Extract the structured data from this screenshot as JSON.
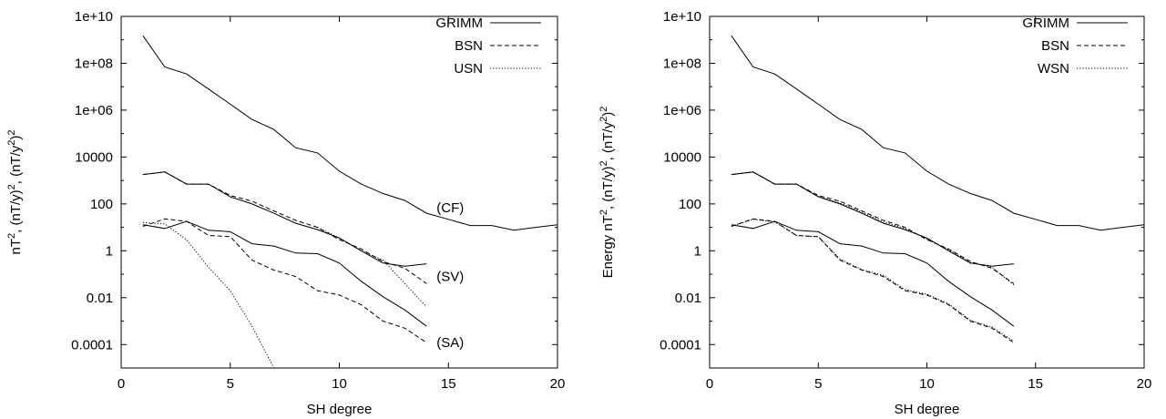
{
  "chart_data": [
    {
      "type": "line",
      "xlabel": "SH degree",
      "ylabel": "nT², (nT/y)², (nT/y²)²",
      "ylabel_parts": [
        "nT",
        "2",
        ", (nT/y)",
        "2",
        ", (nT/y",
        "2",
        ")",
        "2"
      ],
      "xlim": [
        0,
        20
      ],
      "ylim": [
        1e-05,
        10000000000.0
      ],
      "yscale": "log",
      "grid": false,
      "legend_position": "top-right",
      "x_ticks": [
        "0",
        "5",
        "10",
        "15",
        "20"
      ],
      "y_ticks": [
        "1e+10",
        "1e+08",
        "1e+06",
        "10000",
        "100",
        "1",
        "0.01",
        "0.0001"
      ],
      "annotations": [
        {
          "text": "(CF)",
          "x": 14.5,
          "y": 70
        },
        {
          "text": "(SV)",
          "x": 14.5,
          "y": 0.08
        },
        {
          "text": "(SA)",
          "x": 14.5,
          "y": 0.00012
        }
      ],
      "series": [
        {
          "name": "GRIMM",
          "group": "CF",
          "dash": "solid",
          "x": [
            1,
            2,
            3,
            4,
            5,
            6,
            7,
            8,
            9,
            10,
            11,
            12,
            13,
            14,
            15,
            16,
            17,
            18,
            19,
            20
          ],
          "y": [
            1500000000.0,
            70000000.0,
            35000000.0,
            8000000.0,
            1800000.0,
            400000.0,
            150000.0,
            25000.0,
            15000.0,
            2500.0,
            700,
            280,
            140,
            40,
            22,
            12,
            12,
            7.5,
            10,
            13
          ]
        },
        {
          "name": "GRIMM",
          "group": "SV",
          "dash": "solid",
          "x": [
            1,
            2,
            3,
            4,
            5,
            6,
            7,
            8,
            9,
            10,
            11,
            12,
            13,
            14
          ],
          "y": [
            1800,
            2300,
            700,
            700,
            200,
            100,
            40,
            15,
            8,
            3.5,
            1,
            0.3,
            0.22,
            0.28
          ]
        },
        {
          "name": "GRIMM",
          "group": "SA",
          "dash": "solid",
          "x": [
            1,
            2,
            3,
            4,
            5,
            6,
            7,
            8,
            9,
            10,
            11,
            12,
            13,
            14
          ],
          "y": [
            13,
            9,
            18,
            7.5,
            6.5,
            2,
            1.6,
            0.8,
            0.75,
            0.3,
            0.05,
            0.011,
            0.003,
            0.0006
          ]
        },
        {
          "name": "BSN",
          "group": "SV",
          "dash": "dashed",
          "x": [
            1,
            2,
            3,
            4,
            5,
            6,
            7,
            8,
            9,
            10,
            11,
            12,
            13,
            14
          ],
          "y": [
            1800,
            2300,
            700,
            700,
            230,
            130,
            50,
            20,
            10,
            3,
            1.2,
            0.35,
            0.18,
            0.04
          ]
        },
        {
          "name": "BSN",
          "group": "SA",
          "dash": "dashed",
          "x": [
            1,
            2,
            3,
            4,
            5,
            6,
            7,
            8,
            9,
            10,
            11,
            12,
            13,
            14
          ],
          "y": [
            11,
            23,
            18,
            4.5,
            4,
            0.4,
            0.15,
            0.08,
            0.02,
            0.013,
            0.005,
            0.001,
            0.0005,
            0.00012
          ]
        },
        {
          "name": "USN",
          "group": "SV",
          "dash": "dotted",
          "x": [
            9,
            10,
            11,
            12,
            13,
            14
          ],
          "y": [
            10,
            3.5,
            1,
            0.4,
            0.04,
            0.004
          ]
        },
        {
          "name": "USN",
          "group": "SA",
          "dash": "dotted",
          "x": [
            1,
            2,
            3,
            4,
            5,
            6,
            7,
            8
          ],
          "y": [
            16,
            14,
            3,
            0.2,
            0.02,
            0.0006,
            1e-05,
            1.5e-06
          ]
        }
      ]
    },
    {
      "type": "line",
      "xlabel": "SH degree",
      "ylabel": "Energy nT², (nT/y)², (nT/y²)²",
      "ylabel_parts": [
        "Energy nT",
        "2",
        ", (nT/y)",
        "2",
        ", (nT/y",
        "2",
        ")",
        "2"
      ],
      "xlim": [
        0,
        20
      ],
      "ylim": [
        1e-05,
        10000000000.0
      ],
      "yscale": "log",
      "grid": false,
      "legend_position": "top-right",
      "x_ticks": [
        "0",
        "5",
        "10",
        "15",
        "20"
      ],
      "y_ticks": [
        "1e+10",
        "1e+08",
        "1e+06",
        "10000",
        "100",
        "1",
        "0.01",
        "0.0001"
      ],
      "annotations": [],
      "series": [
        {
          "name": "GRIMM",
          "group": "CF",
          "dash": "solid",
          "x": [
            1,
            2,
            3,
            4,
            5,
            6,
            7,
            8,
            9,
            10,
            11,
            12,
            13,
            14,
            15,
            16,
            17,
            18,
            19,
            20
          ],
          "y": [
            1500000000.0,
            70000000.0,
            35000000.0,
            8000000.0,
            1800000.0,
            400000.0,
            150000.0,
            25000.0,
            15000.0,
            2500.0,
            700,
            280,
            140,
            40,
            22,
            12,
            12,
            7.5,
            10,
            13
          ]
        },
        {
          "name": "GRIMM",
          "group": "SV",
          "dash": "solid",
          "x": [
            1,
            2,
            3,
            4,
            5,
            6,
            7,
            8,
            9,
            10,
            11,
            12,
            13,
            14
          ],
          "y": [
            1800,
            2300,
            700,
            700,
            200,
            100,
            40,
            15,
            8,
            3.5,
            1,
            0.3,
            0.22,
            0.28
          ]
        },
        {
          "name": "GRIMM",
          "group": "SA",
          "dash": "solid",
          "x": [
            1,
            2,
            3,
            4,
            5,
            6,
            7,
            8,
            9,
            10,
            11,
            12,
            13,
            14
          ],
          "y": [
            13,
            9,
            18,
            7.5,
            6.5,
            2,
            1.6,
            0.8,
            0.75,
            0.3,
            0.05,
            0.011,
            0.003,
            0.0006
          ]
        },
        {
          "name": "BSN",
          "group": "SV",
          "dash": "dashed",
          "x": [
            1,
            2,
            3,
            4,
            5,
            6,
            7,
            8,
            9,
            10,
            11,
            12,
            13,
            14
          ],
          "y": [
            1800,
            2300,
            700,
            700,
            230,
            130,
            50,
            20,
            10,
            3,
            1.2,
            0.35,
            0.18,
            0.04
          ]
        },
        {
          "name": "BSN",
          "group": "SA",
          "dash": "dashed",
          "x": [
            1,
            2,
            3,
            4,
            5,
            6,
            7,
            8,
            9,
            10,
            11,
            12,
            13,
            14
          ],
          "y": [
            11,
            23,
            18,
            4.5,
            4,
            0.4,
            0.15,
            0.08,
            0.02,
            0.013,
            0.005,
            0.001,
            0.0005,
            0.00012
          ]
        },
        {
          "name": "WSN",
          "group": "SV",
          "dash": "dotted",
          "x": [
            1,
            2,
            3,
            4,
            5,
            6,
            7,
            8,
            9,
            10,
            11,
            12,
            13,
            14
          ],
          "y": [
            1800,
            2300,
            700,
            700,
            210,
            110,
            45,
            17,
            9,
            3.2,
            1.1,
            0.32,
            0.2,
            0.035
          ]
        },
        {
          "name": "WSN",
          "group": "SA",
          "dash": "dotted",
          "x": [
            1,
            2,
            3,
            4,
            5,
            6,
            7,
            8,
            9,
            10,
            11,
            12,
            13,
            14
          ],
          "y": [
            11,
            22,
            17,
            4.5,
            4,
            0.45,
            0.16,
            0.09,
            0.022,
            0.014,
            0.0055,
            0.0011,
            0.00055,
            0.00014
          ]
        }
      ]
    }
  ]
}
